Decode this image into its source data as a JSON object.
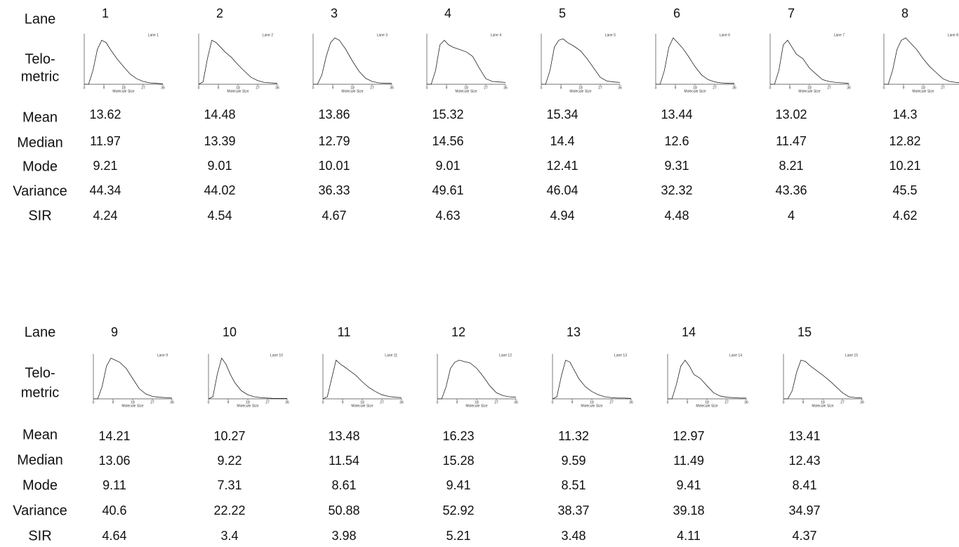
{
  "labels": {
    "lane": "Lane",
    "telometric": [
      "Telo-",
      "metric"
    ],
    "stats": [
      "Mean",
      "Median",
      "Mode",
      "Variance",
      "SIR"
    ]
  },
  "plot_axes": {
    "x": [
      0,
      2,
      4,
      6,
      8,
      10,
      12,
      15,
      18,
      21,
      24,
      27,
      30,
      33,
      36
    ],
    "xlim": [
      0,
      36
    ],
    "xticks": [
      0,
      9,
      18,
      27,
      36
    ],
    "ylim": [
      0,
      1
    ],
    "xlabel": "Molecule Size"
  },
  "panels": [
    {
      "lanes": [
        {
          "lane": "1",
          "plot": {
            "type": "line",
            "title": "Lane 1",
            "values": [
              0,
              0,
              0.3,
              0.75,
              0.95,
              0.9,
              0.75,
              0.55,
              0.38,
              0.22,
              0.12,
              0.06,
              0.03,
              0.02,
              0.01
            ]
          },
          "stats": [
            13.62,
            11.97,
            9.21,
            44.34,
            4.24
          ]
        },
        {
          "lane": "2",
          "plot": {
            "type": "line",
            "title": "Lane 2",
            "values": [
              0,
              0.05,
              0.55,
              0.95,
              0.9,
              0.8,
              0.7,
              0.58,
              0.42,
              0.28,
              0.15,
              0.08,
              0.04,
              0.03,
              0.02
            ]
          },
          "stats": [
            14.48,
            13.39,
            9.01,
            44.02,
            4.54
          ]
        },
        {
          "lane": "3",
          "plot": {
            "type": "line",
            "title": "Lane 3",
            "values": [
              0,
              0,
              0.2,
              0.6,
              0.9,
              1,
              0.95,
              0.75,
              0.5,
              0.28,
              0.13,
              0.06,
              0.03,
              0.02,
              0.02
            ]
          },
          "stats": [
            13.86,
            12.79,
            10.01,
            36.33,
            4.67
          ]
        },
        {
          "lane": "4",
          "plot": {
            "type": "line",
            "title": "Lane 4",
            "values": [
              0,
              0,
              0.3,
              0.85,
              0.95,
              0.85,
              0.8,
              0.75,
              0.7,
              0.6,
              0.35,
              0.12,
              0.06,
              0.05,
              0.04
            ]
          },
          "stats": [
            15.32,
            14.56,
            9.01,
            49.61,
            4.63
          ]
        },
        {
          "lane": "5",
          "plot": {
            "type": "line",
            "title": "Lane 5",
            "values": [
              0,
              0,
              0.3,
              0.8,
              0.95,
              0.98,
              0.9,
              0.82,
              0.72,
              0.55,
              0.35,
              0.15,
              0.07,
              0.05,
              0.04
            ]
          },
          "stats": [
            15.34,
            14.4,
            12.41,
            46.04,
            4.94
          ]
        },
        {
          "lane": "6",
          "plot": {
            "type": "line",
            "title": "Lane 6",
            "values": [
              0,
              0,
              0.3,
              0.8,
              1,
              0.9,
              0.8,
              0.6,
              0.38,
              0.2,
              0.1,
              0.05,
              0.03,
              0.02,
              0.02
            ]
          },
          "stats": [
            13.44,
            12.6,
            9.31,
            32.32,
            4.48
          ]
        },
        {
          "lane": "7",
          "plot": {
            "type": "line",
            "title": "Lane 7",
            "values": [
              0,
              0,
              0.3,
              0.85,
              0.95,
              0.8,
              0.65,
              0.55,
              0.35,
              0.22,
              0.1,
              0.06,
              0.04,
              0.03,
              0.02
            ]
          },
          "stats": [
            13.02,
            11.47,
            8.21,
            43.36,
            4
          ]
        },
        {
          "lane": "8",
          "plot": {
            "type": "line",
            "title": "Lane 8",
            "values": [
              0,
              0,
              0.3,
              0.75,
              0.95,
              1,
              0.9,
              0.75,
              0.55,
              0.38,
              0.25,
              0.12,
              0.06,
              0.04,
              0.03
            ]
          },
          "stats": [
            14.3,
            12.82,
            10.21,
            45.5,
            4.62
          ]
        }
      ]
    },
    {
      "lanes": [
        {
          "lane": "9",
          "plot": {
            "type": "line",
            "title": "Lane 9",
            "values": [
              0,
              0,
              0.3,
              0.8,
              1,
              0.95,
              0.9,
              0.75,
              0.5,
              0.25,
              0.12,
              0.06,
              0.04,
              0.03,
              0.02
            ]
          },
          "stats": [
            14.21,
            13.06,
            9.11,
            40.6,
            4.64
          ]
        },
        {
          "lane": "10",
          "plot": {
            "type": "line",
            "title": "Lane 10",
            "values": [
              0,
              0.05,
              0.6,
              1,
              0.85,
              0.6,
              0.4,
              0.2,
              0.1,
              0.05,
              0.03,
              0.02,
              0.01,
              0.01,
              0.01
            ]
          },
          "stats": [
            10.27,
            9.22,
            7.31,
            22.22,
            3.4
          ]
        },
        {
          "lane": "11",
          "plot": {
            "type": "line",
            "title": "Lane 11",
            "values": [
              0,
              0.05,
              0.5,
              0.95,
              0.85,
              0.78,
              0.7,
              0.58,
              0.42,
              0.28,
              0.18,
              0.1,
              0.06,
              0.04,
              0.03
            ]
          },
          "stats": [
            13.48,
            11.54,
            8.61,
            50.88,
            3.98
          ]
        },
        {
          "lane": "12",
          "plot": {
            "type": "line",
            "title": "Lane 12",
            "values": [
              0,
              0,
              0.3,
              0.75,
              0.9,
              0.95,
              0.92,
              0.88,
              0.75,
              0.55,
              0.32,
              0.15,
              0.08,
              0.05,
              0.04
            ]
          },
          "stats": [
            16.23,
            15.28,
            9.41,
            52.92,
            5.21
          ]
        },
        {
          "lane": "13",
          "plot": {
            "type": "line",
            "title": "Lane 13",
            "values": [
              0,
              0.05,
              0.55,
              0.95,
              0.9,
              0.7,
              0.5,
              0.3,
              0.18,
              0.1,
              0.05,
              0.03,
              0.02,
              0.02,
              0.01
            ]
          },
          "stats": [
            11.32,
            9.59,
            8.51,
            38.37,
            3.48
          ]
        },
        {
          "lane": "14",
          "plot": {
            "type": "line",
            "title": "Lane 14",
            "values": [
              0,
              0,
              0.35,
              0.8,
              0.95,
              0.8,
              0.6,
              0.5,
              0.32,
              0.15,
              0.07,
              0.04,
              0.03,
              0.02,
              0.02
            ]
          },
          "stats": [
            12.97,
            11.49,
            9.41,
            39.18,
            4.11
          ]
        },
        {
          "lane": "15",
          "plot": {
            "type": "line",
            "title": "Lane 15",
            "values": [
              0,
              0,
              0.2,
              0.65,
              0.95,
              0.92,
              0.82,
              0.7,
              0.58,
              0.45,
              0.3,
              0.15,
              0.05,
              0.03,
              0.02
            ]
          },
          "stats": [
            13.41,
            12.43,
            8.41,
            34.97,
            4.37
          ]
        }
      ]
    }
  ]
}
